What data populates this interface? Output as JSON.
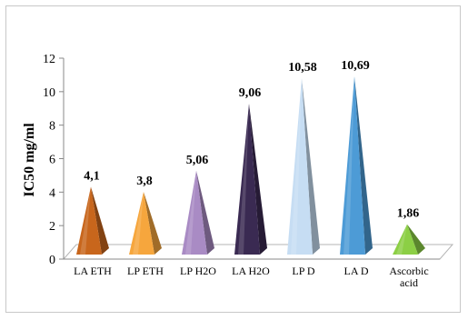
{
  "chart_data": {
    "type": "bar",
    "bar_shape": "pyramid-3d",
    "categories": [
      "LA ETH",
      "LP ETH",
      "LP H2O",
      "LA H2O",
      "LP D",
      "LA D",
      "Ascorbic acid"
    ],
    "values": [
      4.1,
      3.8,
      5.06,
      9.06,
      10.58,
      10.69,
      1.86
    ],
    "data_labels": [
      "4,1",
      "3,8",
      "5,06",
      "9,06",
      "10,58",
      "10,69",
      "1,86"
    ],
    "colors": [
      "#c8661c",
      "#f6a63d",
      "#a98bc4",
      "#3a2a52",
      "#c6ddf3",
      "#4d9bd6",
      "#8ccf45"
    ],
    "ylabel": "IC50 mg/ml",
    "xlabel": "",
    "yticks": [
      0,
      2,
      4,
      6,
      8,
      10,
      12
    ],
    "ylim": [
      0,
      12
    ],
    "grid": false,
    "legend": "none"
  }
}
